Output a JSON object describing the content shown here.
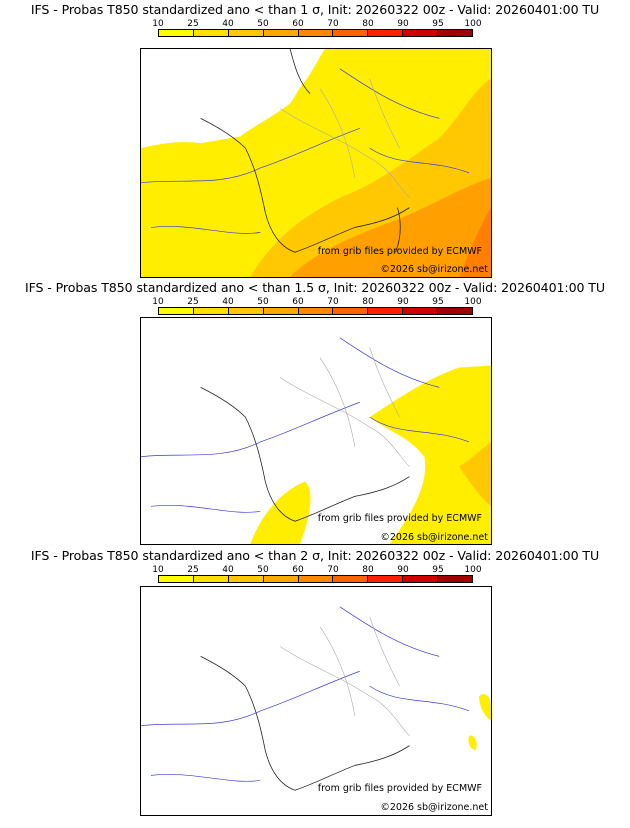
{
  "legend": {
    "levels": [
      "10",
      "25",
      "40",
      "50",
      "60",
      "70",
      "80",
      "90",
      "95",
      "100"
    ],
    "colors": [
      "#ffff00",
      "#ffe000",
      "#ffc800",
      "#ffa800",
      "#ff8800",
      "#ff6400",
      "#ff2000",
      "#d00000",
      "#a00000",
      "#600000"
    ]
  },
  "panels": [
    {
      "title": "IFS - Probas T850  standardized ano < than 1 σ, Init: 20260322 00z - Valid: 20260401:00 TU",
      "source": "from grib files provided by ECMWF",
      "credit": "©2026 sb@irizone.net"
    },
    {
      "title": "IFS - Probas T850  standardized ano < than 1.5 σ, Init: 20260322 00z - Valid: 20260401:00 TU",
      "source": "from grib files provided by ECMWF",
      "credit": "©2026 sb@irizone.net"
    },
    {
      "title": "IFS - Probas T850  standardized ano < than 2 σ, Init: 20260322 00z - Valid: 20260401:00 TU",
      "source": "from grib files provided by ECMWF",
      "credit": "©2026 sb@irizone.net"
    }
  ]
}
